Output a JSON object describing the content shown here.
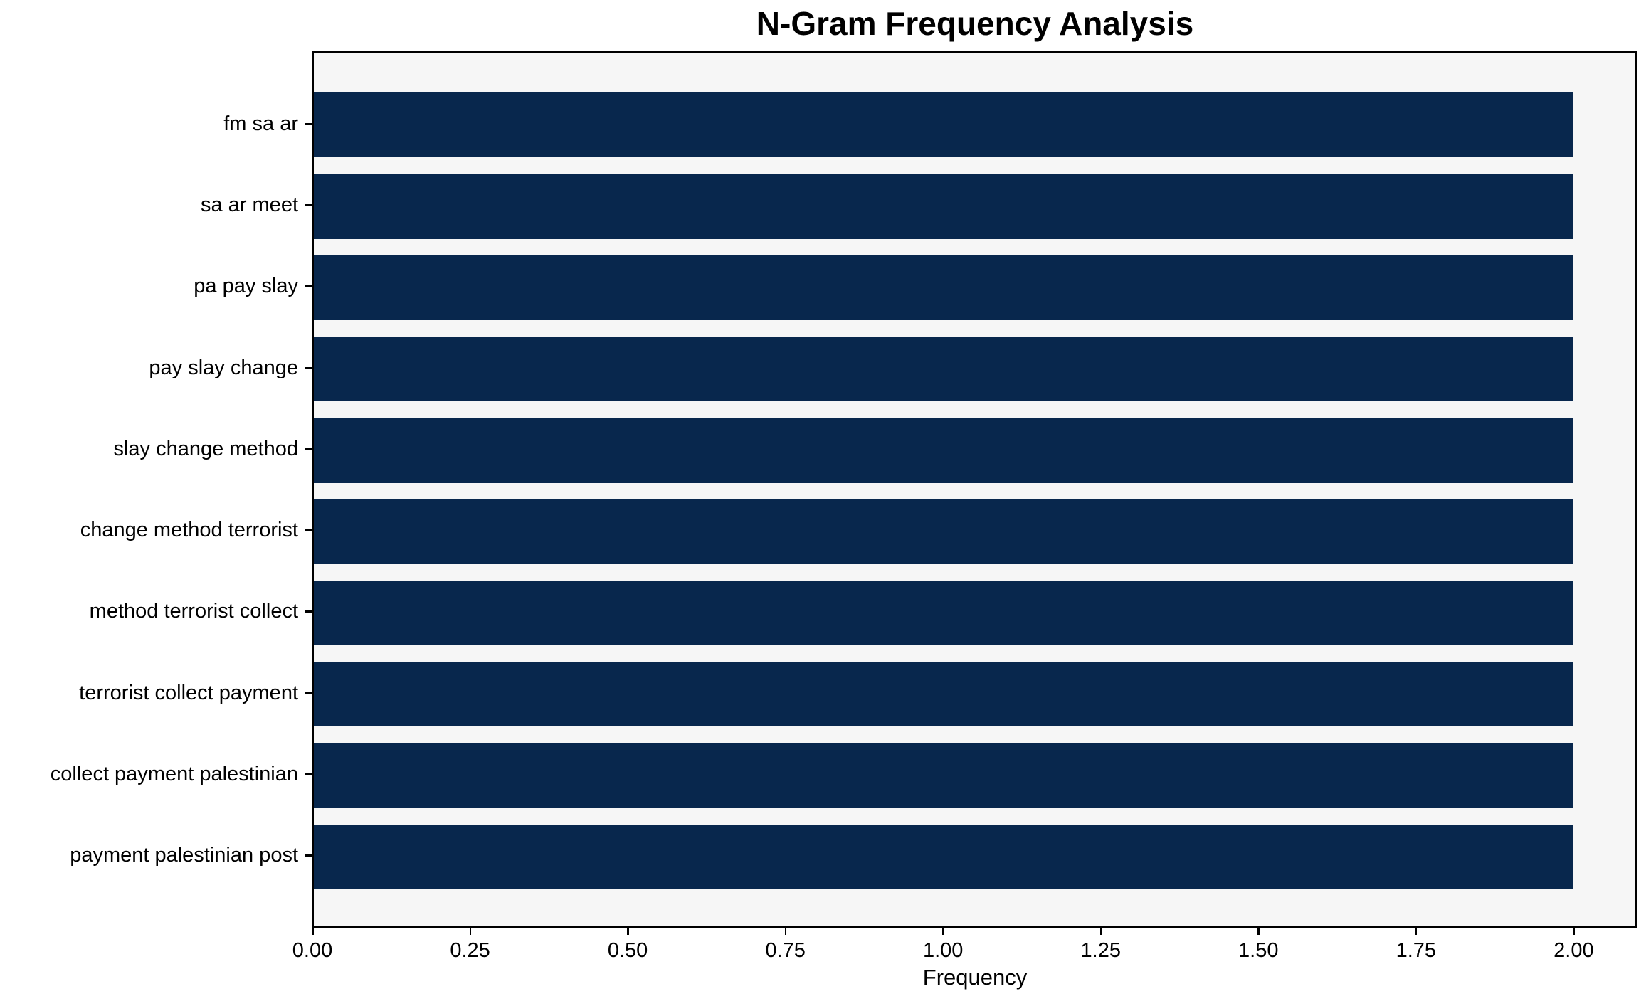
{
  "chart": {
    "title": "N-Gram Frequency Analysis",
    "xlabel": "Frequency"
  },
  "chart_data": {
    "type": "bar",
    "orientation": "horizontal",
    "title": "N-Gram Frequency Analysis",
    "xlabel": "Frequency",
    "ylabel": "",
    "categories": [
      "fm sa ar",
      "sa ar meet",
      "pa pay slay",
      "pay slay change",
      "slay change method",
      "change method terrorist",
      "method terrorist collect",
      "terrorist collect payment",
      "collect payment palestinian",
      "payment palestinian post"
    ],
    "values": [
      2.0,
      2.0,
      2.0,
      2.0,
      2.0,
      2.0,
      2.0,
      2.0,
      2.0,
      2.0
    ],
    "xlim": [
      0,
      2.1
    ],
    "x_tick_values": [
      0.0,
      0.25,
      0.5,
      0.75,
      1.0,
      1.25,
      1.5,
      1.75,
      2.0
    ],
    "x_tick_labels": [
      "0.00",
      "0.25",
      "0.50",
      "0.75",
      "1.00",
      "1.25",
      "1.50",
      "1.75",
      "2.00"
    ],
    "grid": false,
    "legend": false,
    "bar_height_fraction": 0.8,
    "colors": {
      "bar": "#08274d",
      "plot_background": "#f6f6f6",
      "figure_background": "#ffffff",
      "text": "#000000",
      "frame": "#000000"
    }
  }
}
